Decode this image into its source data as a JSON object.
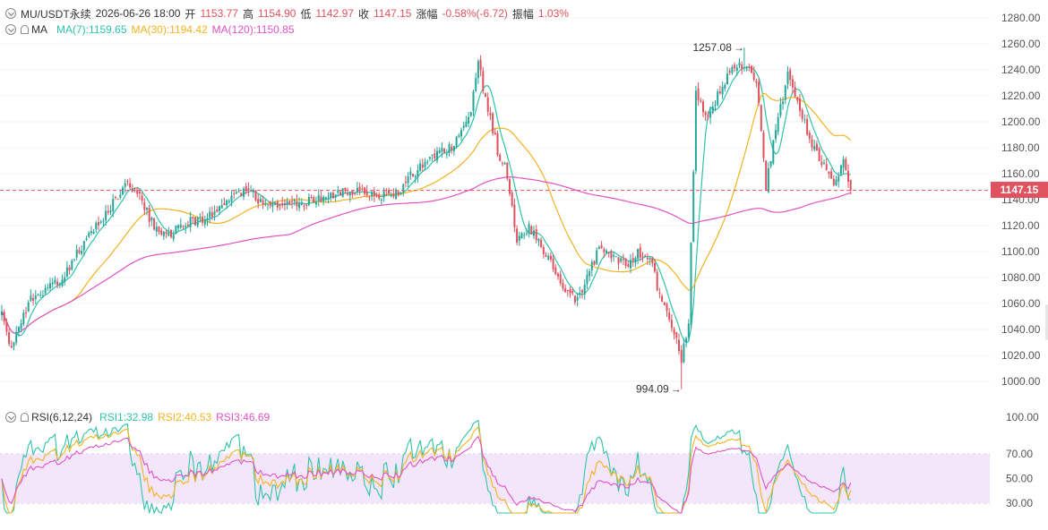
{
  "header": {
    "symbol": "MU/USDT永续",
    "datetime": "2026-06-26 18:00",
    "open_label": "开",
    "open": "1153.77",
    "high_label": "高",
    "high": "1154.90",
    "low_label": "低",
    "low": "1142.97",
    "close_label": "收",
    "close": "1147.15",
    "change_label": "涨幅",
    "change": "-0.58%(-6.72)",
    "amplitude_label": "振幅",
    "amplitude": "1.03%"
  },
  "ma_legend": {
    "label": "MA",
    "ma7": "MA(7):1159.65",
    "ma30": "MA(30):1194.42",
    "ma120": "MA(120):1150.85"
  },
  "rsi_legend": {
    "label": "RSI(6,12,24)",
    "rsi1": "RSI1:32.98",
    "rsi2": "RSI2:40.53",
    "rsi3": "RSI3:46.69"
  },
  "current_price_tag": "1147.15",
  "icons": [
    "chevron-circle-icon",
    "bell-icon"
  ],
  "colors": {
    "up": "#26a69a",
    "down": "#e0525e",
    "ma7": "#2ec4a8",
    "ma30": "#f2b221",
    "ma120": "#e052c8",
    "rsi1": "#2ec4a8",
    "rsi2": "#f2b221",
    "rsi3": "#e052c8",
    "rsi_band": "#f3e6fb"
  },
  "chart_data": [
    {
      "type": "candlestick",
      "ylim": [
        990,
        1290
      ],
      "y_ticks": [
        "1280.00",
        "1260.00",
        "1240.00",
        "1220.00",
        "1200.00",
        "1180.00",
        "1160.00",
        "1140.00",
        "1120.00",
        "1100.00",
        "1080.00",
        "1060.00",
        "1040.00",
        "1020.00",
        "1000.00"
      ],
      "annotations": {
        "high": {
          "label": "1257.08",
          "value": 1257.08
        },
        "low": {
          "label": "994.09",
          "value": 994.09
        }
      },
      "last_price": 1147.15,
      "anchors": [
        [
          0,
          1050
        ],
        [
          4,
          1025
        ],
        [
          8,
          1045
        ],
        [
          12,
          1065
        ],
        [
          18,
          1070
        ],
        [
          25,
          1080
        ],
        [
          30,
          1095
        ],
        [
          38,
          1118
        ],
        [
          45,
          1135
        ],
        [
          52,
          1153
        ],
        [
          58,
          1140
        ],
        [
          63,
          1118
        ],
        [
          70,
          1115
        ],
        [
          78,
          1123
        ],
        [
          86,
          1128
        ],
        [
          94,
          1138
        ],
        [
          100,
          1148
        ],
        [
          106,
          1140
        ],
        [
          112,
          1137
        ],
        [
          118,
          1135
        ],
        [
          126,
          1138
        ],
        [
          134,
          1143
        ],
        [
          142,
          1147
        ],
        [
          150,
          1145
        ],
        [
          157,
          1143
        ],
        [
          163,
          1145
        ],
        [
          170,
          1160
        ],
        [
          178,
          1172
        ],
        [
          186,
          1180
        ],
        [
          193,
          1200
        ],
        [
          197,
          1245
        ],
        [
          201,
          1210
        ],
        [
          205,
          1178
        ],
        [
          209,
          1160
        ],
        [
          213,
          1110
        ],
        [
          218,
          1120
        ],
        [
          225,
          1098
        ],
        [
          232,
          1070
        ],
        [
          238,
          1062
        ],
        [
          243,
          1085
        ],
        [
          248,
          1105
        ],
        [
          253,
          1095
        ],
        [
          258,
          1090
        ],
        [
          263,
          1100
        ],
        [
          268,
          1095
        ],
        [
          273,
          1060
        ],
        [
          278,
          1040
        ],
        [
          281,
          1015
        ],
        [
          284,
          1048
        ],
        [
          287,
          1220
        ],
        [
          292,
          1200
        ],
        [
          297,
          1225
        ],
        [
          302,
          1240
        ],
        [
          307,
          1243
        ],
        [
          312,
          1232
        ],
        [
          316,
          1150
        ],
        [
          320,
          1195
        ],
        [
          325,
          1235
        ],
        [
          330,
          1210
        ],
        [
          335,
          1182
        ],
        [
          340,
          1165
        ],
        [
          344,
          1150
        ],
        [
          348,
          1170
        ],
        [
          351,
          1147
        ]
      ],
      "series": [
        {
          "name": "MA(7)",
          "period": 7
        },
        {
          "name": "MA(30)",
          "period": 30
        },
        {
          "name": "MA(120)",
          "period": 120
        }
      ]
    },
    {
      "type": "line",
      "ylim": [
        0,
        100
      ],
      "y_ticks": [
        "100.00",
        "70.00",
        "50.00",
        "30.00"
      ],
      "band": [
        30,
        70
      ],
      "series": [
        {
          "name": "RSI1",
          "period": 6,
          "last": 32.98
        },
        {
          "name": "RSI2",
          "period": 12,
          "last": 40.53
        },
        {
          "name": "RSI3",
          "period": 24,
          "last": 46.69
        }
      ]
    }
  ]
}
